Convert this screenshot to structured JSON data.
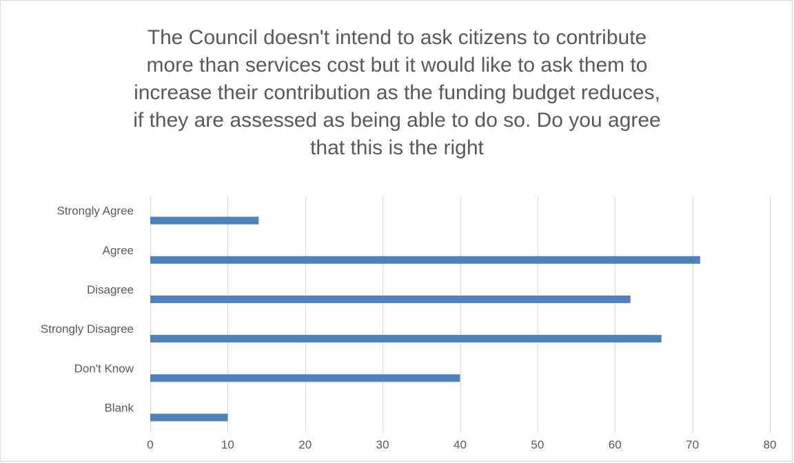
{
  "chart_data": {
    "type": "bar",
    "orientation": "horizontal",
    "title_lines": [
      "The Council doesn't intend to ask citizens to contribute",
      "more than services cost but it would like to ask them to",
      "increase their contribution as the funding budget reduces,",
      "if they are assessed as being able to do so.  Do you agree",
      "that this is the right"
    ],
    "categories": [
      "Strongly Agree",
      "Agree",
      "Disagree",
      "Strongly Disagree",
      "Don't Know",
      "Blank"
    ],
    "values": [
      14,
      71,
      62,
      66,
      40,
      10
    ],
    "xlim": [
      0,
      80
    ],
    "x_ticks": [
      "0",
      "10",
      "20",
      "30",
      "40",
      "50",
      "60",
      "70",
      "80"
    ],
    "grid": true,
    "legend": "none",
    "bar_color": "#4f81bd"
  }
}
